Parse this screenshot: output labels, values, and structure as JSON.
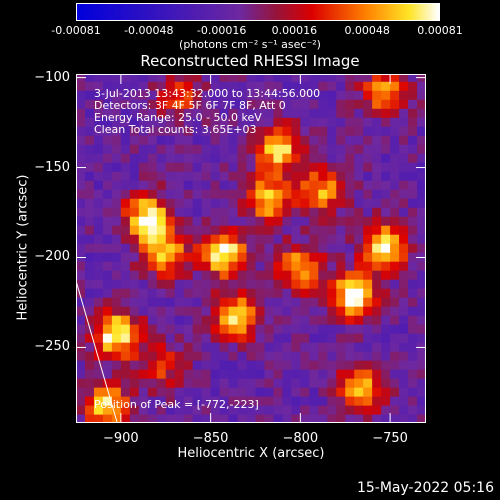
{
  "chart_data": {
    "type": "heatmap",
    "title": "Reconstructed RHESSI Image",
    "xlabel": "Heliocentric X (arcsec)",
    "ylabel": "Heliocentric Y (arcsec)",
    "xlim": [
      -925,
      -730
    ],
    "ylim": [
      -292,
      -98
    ],
    "xticks": [
      -900,
      -850,
      -800,
      -750
    ],
    "yticks": [
      -100,
      -150,
      -200,
      -250
    ],
    "colorbar": {
      "ticks": [
        "-0.00081",
        "-0.00048",
        "-0.00016",
        "0.00016",
        "0.00048",
        "0.00081"
      ],
      "unit": "(photons cm⁻² s⁻¹ asec⁻²)"
    },
    "annotations": {
      "time": "3-Jul-2013 13:43:32.000 to 13:44:56.000",
      "detectors": "Detectors: 3F 4F 5F 6F 7F 8F, Att 0",
      "energy": "Energy Range: 25.0 - 50.0 keV",
      "clean": "Clean    Total counts: 3.65E+03",
      "peak": "Position of Peak = [-772,-223]"
    },
    "peak": {
      "x": -772,
      "y": -223
    },
    "limb": [
      [
        -925,
        -213
      ],
      [
        -902,
        -292
      ]
    ],
    "sources": [
      {
        "x": -888,
        "y": -180,
        "v": 0.95
      },
      {
        "x": -878,
        "y": -200,
        "v": 0.8
      },
      {
        "x": -845,
        "y": -200,
        "v": 0.95
      },
      {
        "x": -838,
        "y": -235,
        "v": 0.85
      },
      {
        "x": -820,
        "y": -170,
        "v": 0.8
      },
      {
        "x": -815,
        "y": -142,
        "v": 0.85
      },
      {
        "x": -803,
        "y": -208,
        "v": 0.75
      },
      {
        "x": -790,
        "y": -165,
        "v": 0.7
      },
      {
        "x": -772,
        "y": -223,
        "v": 1.0
      },
      {
        "x": -755,
        "y": -195,
        "v": 0.95
      },
      {
        "x": -755,
        "y": -110,
        "v": 0.7
      },
      {
        "x": -768,
        "y": -275,
        "v": 0.75
      },
      {
        "x": -905,
        "y": -245,
        "v": 1.0
      },
      {
        "x": -910,
        "y": -285,
        "v": 0.85
      },
      {
        "x": -870,
        "y": -112,
        "v": 0.5
      },
      {
        "x": -880,
        "y": -262,
        "v": 0.45
      }
    ]
  },
  "footer": {
    "date": "15-May-2022 05:16"
  }
}
